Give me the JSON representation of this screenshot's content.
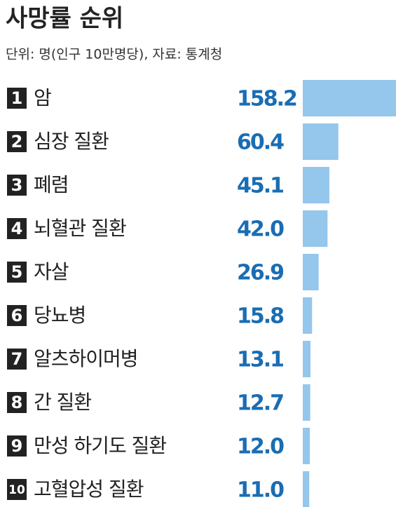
{
  "chart_data": {
    "type": "bar",
    "title": "사망률 순위",
    "subtitle": "단위: 명(인구 10만명당), 자료: 통계청",
    "ranks": [
      1,
      2,
      3,
      4,
      5,
      6,
      7,
      8,
      9,
      10
    ],
    "categories": [
      "암",
      "심장 질환",
      "폐렴",
      "뇌혈관 질환",
      "자살",
      "당뇨병",
      "알츠하이머병",
      "간 질환",
      "만성 하기도 질환",
      "고혈압성 질환"
    ],
    "values": [
      158.2,
      60.4,
      45.1,
      42.0,
      26.9,
      15.8,
      13.1,
      12.7,
      12.0,
      11.0
    ],
    "value_labels": [
      "158.2",
      "60.4",
      "45.1",
      "42.0",
      "26.9",
      "15.8",
      "13.1",
      "12.7",
      "12.0",
      "11.0"
    ],
    "color": "#95c6ec",
    "label_color": "#1a6db3"
  }
}
